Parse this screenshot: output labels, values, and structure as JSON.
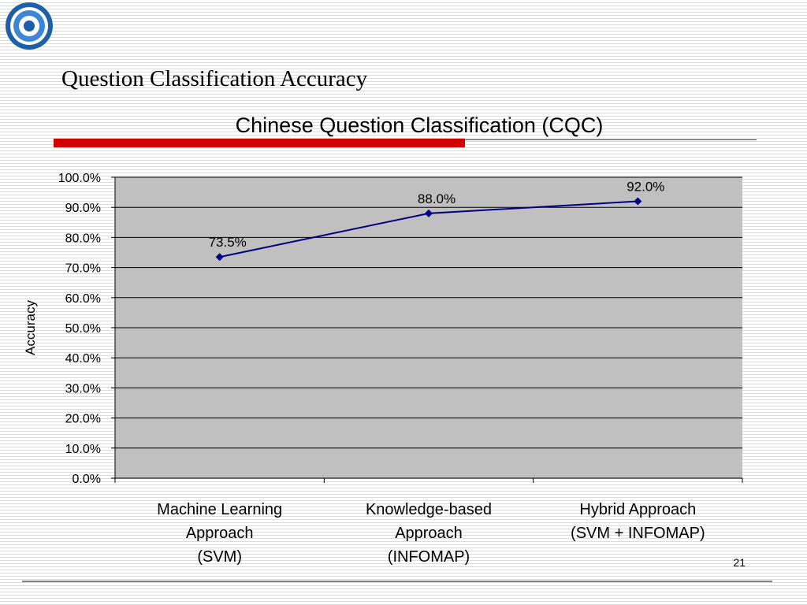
{
  "slide": {
    "title": "Question Classification Accuracy",
    "page_number": "21"
  },
  "colors": {
    "title_rule": "#d00000",
    "plot_background": "#c0c0c0",
    "series_line": "#000080",
    "gridline": "#000000"
  },
  "icons": [
    "lab-logo"
  ],
  "chart_data": {
    "type": "line",
    "title": "Chinese Question Classification (CQC)",
    "xlabel": "",
    "ylabel": "Accuracy",
    "ylim": [
      0,
      100
    ],
    "y_ticks": [
      "0.0%",
      "10.0%",
      "20.0%",
      "30.0%",
      "40.0%",
      "50.0%",
      "60.0%",
      "70.0%",
      "80.0%",
      "90.0%",
      "100.0%"
    ],
    "categories": [
      [
        "Machine Learning",
        "Approach",
        "(SVM)"
      ],
      [
        "Knowledge-based",
        "Approach",
        "(INFOMAP)"
      ],
      [
        "Hybrid Approach",
        "(SVM + INFOMAP)"
      ]
    ],
    "series": [
      {
        "values": [
          73.5,
          88.0,
          92.0
        ],
        "labels": [
          "73.5%",
          "88.0%",
          "92.0%"
        ]
      }
    ],
    "grid": true,
    "legend": "none"
  }
}
